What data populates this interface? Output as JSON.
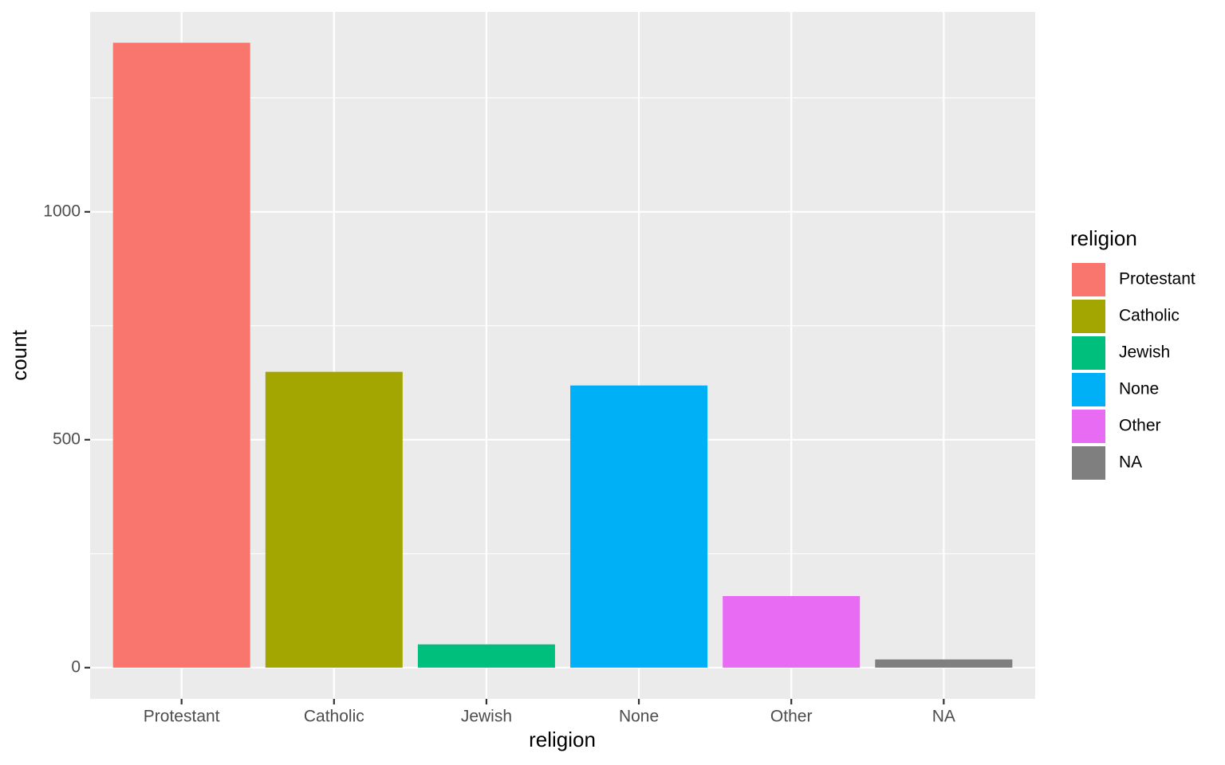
{
  "chart_data": {
    "type": "bar",
    "x_label": "religion",
    "y_label": "count",
    "legend_title": "religion",
    "categories": [
      "Protestant",
      "Catholic",
      "Jewish",
      "None",
      "Other",
      "NA"
    ],
    "values": [
      1371,
      649,
      51,
      619,
      157,
      18
    ],
    "colors": [
      "#f8766d",
      "#a3a500",
      "#00bf7d",
      "#00b0f6",
      "#e76bf3",
      "#7f7f7f"
    ],
    "ylim": [
      -68.5,
      1438.5
    ],
    "yticks": [
      0,
      500,
      1000
    ],
    "grid": true,
    "legend": "right"
  }
}
